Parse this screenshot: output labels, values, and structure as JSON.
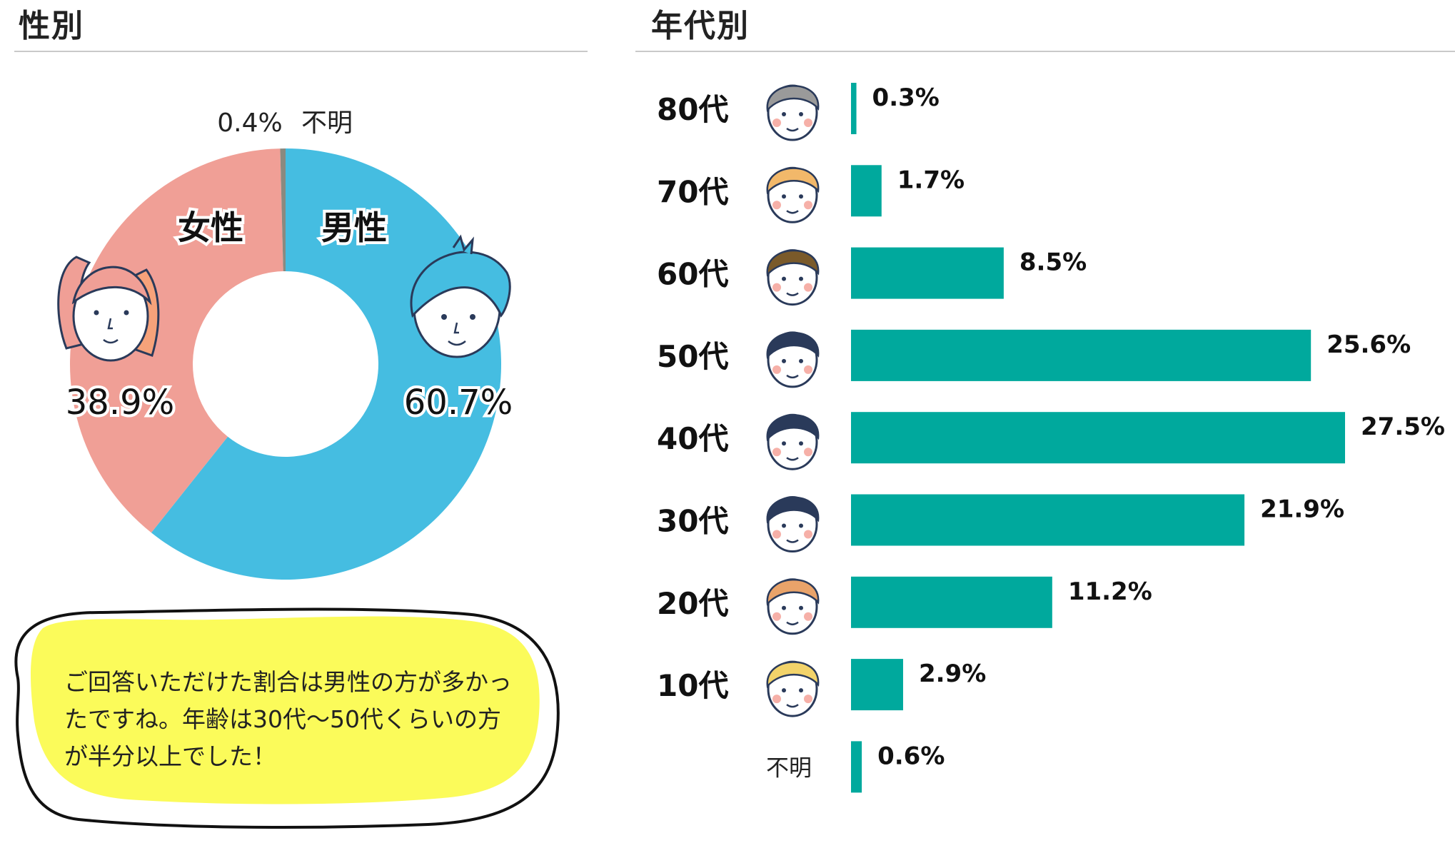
{
  "gender_section": {
    "title": "性別",
    "callout_text": "ご回答いただけた割合は男性の方が多かったですね。年齢は30代〜50代くらいの方が半分以上でした！"
  },
  "age_section": {
    "title": "年代別"
  },
  "colors": {
    "male": "#45bde1",
    "female": "#f09f96",
    "unknown": "#8a8a80",
    "bar": "#00a99d",
    "bubble": "#fbfb5a"
  },
  "chart_data": [
    {
      "type": "pie",
      "variant": "donut",
      "slices": [
        {
          "name": "男性",
          "value": 60.7,
          "label": "60.7%",
          "color": "#45bde1",
          "icon": "male-face-icon"
        },
        {
          "name": "女性",
          "value": 38.9,
          "label": "38.9%",
          "color": "#f09f96",
          "icon": "female-face-icon"
        },
        {
          "name": "不明",
          "value": 0.4,
          "label": "0.4%",
          "color": "#8a8a80"
        }
      ]
    },
    {
      "type": "bar",
      "orientation": "horizontal",
      "categories": [
        "80代",
        "70代",
        "60代",
        "50代",
        "40代",
        "30代",
        "20代",
        "10代",
        "不明"
      ],
      "values": [
        0.3,
        1.7,
        8.5,
        25.6,
        27.5,
        21.9,
        11.2,
        2.9,
        0.6
      ],
      "value_labels": [
        "0.3%",
        "1.7%",
        "8.5%",
        "25.6%",
        "27.5%",
        "21.9%",
        "11.2%",
        "2.9%",
        "0.6%"
      ],
      "icons": [
        "elderly-face-icon",
        "glasses-blonde-face-icon",
        "brown-hair-face-icon",
        "spiky-hair-face-icon",
        "glasses-face-icon",
        "navy-hair-woman-face-icon",
        "bun-hair-face-icon",
        "blonde-face-icon",
        ""
      ],
      "xlim": [
        0,
        30
      ],
      "grid": false,
      "legend": "none"
    }
  ]
}
